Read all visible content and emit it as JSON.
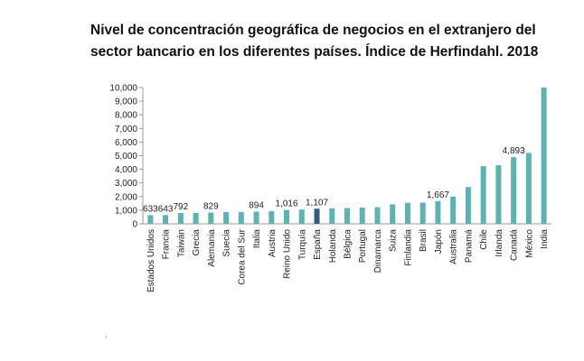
{
  "title_line1": "Nivel de concentración geográfica de negocios en el extranjero del",
  "title_line2": "sector bancario en los diferentes países. Índice de Herfindahl. 2018",
  "chart_data": {
    "type": "bar",
    "categories": [
      "Estados Unidos",
      "Francia",
      "Taiwán",
      "Grecia",
      "Alemania",
      "Suecia",
      "Corea del Sur",
      "Italia",
      "Austria",
      "Reino Unido",
      "Turquía",
      "España",
      "Holanda",
      "Bélgica",
      "Portugal",
      "Dinamarca",
      "Suiza",
      "Finlandia",
      "Brasil",
      "Japón",
      "Australia",
      "Panamá",
      "Chile",
      "Irlanda",
      "Canadá",
      "México",
      "India"
    ],
    "values": [
      633,
      643,
      792,
      800,
      829,
      860,
      870,
      894,
      920,
      1016,
      1050,
      1107,
      1130,
      1160,
      1190,
      1220,
      1430,
      1540,
      1560,
      1667,
      2000,
      2700,
      4230,
      4300,
      4893,
      5200,
      10000
    ],
    "data_labels": [
      "633",
      "643",
      "792",
      "",
      "829",
      "",
      "",
      "894",
      "",
      "1,016",
      "",
      "1,107",
      "",
      "",
      "",
      "",
      "",
      "",
      "",
      "1,667",
      "",
      "",
      "",
      "",
      "4,893",
      "",
      ""
    ],
    "highlight_category": "España",
    "y_ticks": [
      "0",
      "1,000",
      "2,000",
      "3,000",
      "4,000",
      "5,000",
      "6,000",
      "7,000",
      "8,000",
      "9,000",
      "10,000"
    ],
    "ylim": [
      0,
      10000
    ],
    "grid": false,
    "legend": "none",
    "colors": {
      "bar": "#5ab4b4",
      "highlight": "#2e5f7f",
      "axis": "#999999"
    }
  },
  "stray_mark": "ˈ"
}
